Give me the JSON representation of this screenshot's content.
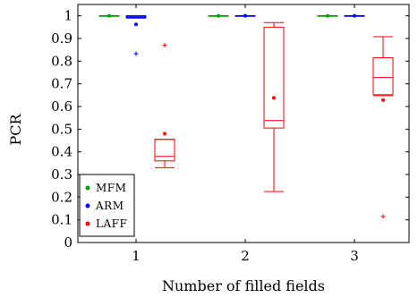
{
  "chart_data": {
    "type": "box",
    "xlabel": "Number of filled fields",
    "ylabel": "PCR",
    "categories": [
      "1",
      "2",
      "3"
    ],
    "ylim": [
      0,
      1.05
    ],
    "yticks": [
      "0",
      "0.1",
      "0.2",
      "0.3",
      "0.4",
      "0.5",
      "0.6",
      "0.7",
      "0.8",
      "0.9",
      "1"
    ],
    "grid": false,
    "legend_position": "bottom-left",
    "series": [
      {
        "name": "MFM",
        "color": "#00a000",
        "boxes": [
          {
            "category": "1",
            "whisker_low": 1.0,
            "q1": 1.0,
            "median": 1.0,
            "q3": 1.0,
            "whisker_high": 1.0,
            "mean": 1.0,
            "outliers": []
          },
          {
            "category": "2",
            "whisker_low": 1.0,
            "q1": 1.0,
            "median": 1.0,
            "q3": 1.0,
            "whisker_high": 1.0,
            "mean": 1.0,
            "outliers": []
          },
          {
            "category": "3",
            "whisker_low": 1.0,
            "q1": 1.0,
            "median": 1.0,
            "q3": 1.0,
            "whisker_high": 1.0,
            "mean": 1.0,
            "outliers": []
          }
        ]
      },
      {
        "name": "ARM",
        "color": "#0000ff",
        "boxes": [
          {
            "category": "1",
            "whisker_low": 0.99,
            "q1": 0.993,
            "median": 0.997,
            "q3": 1.0,
            "whisker_high": 1.0,
            "mean": 0.962,
            "outliers": [
              0.833
            ]
          },
          {
            "category": "2",
            "whisker_low": 1.0,
            "q1": 1.0,
            "median": 1.0,
            "q3": 1.0,
            "whisker_high": 1.0,
            "mean": 1.0,
            "outliers": []
          },
          {
            "category": "3",
            "whisker_low": 1.0,
            "q1": 1.0,
            "median": 1.0,
            "q3": 1.0,
            "whisker_high": 1.0,
            "mean": 1.0,
            "outliers": []
          }
        ]
      },
      {
        "name": "LAFF",
        "color": "#ff0000",
        "boxes": [
          {
            "category": "1",
            "whisker_low": 0.33,
            "q1": 0.36,
            "median": 0.38,
            "q3": 0.455,
            "whisker_high": 0.455,
            "mean": 0.48,
            "outliers": [
              0.87
            ]
          },
          {
            "category": "2",
            "whisker_low": 0.225,
            "q1": 0.505,
            "median": 0.538,
            "q3": 0.95,
            "whisker_high": 0.97,
            "mean": 0.638,
            "outliers": []
          },
          {
            "category": "3",
            "whisker_low": 0.648,
            "q1": 0.652,
            "median": 0.728,
            "q3": 0.815,
            "whisker_high": 0.908,
            "mean": 0.628,
            "outliers": [
              0.115
            ]
          }
        ]
      }
    ]
  }
}
